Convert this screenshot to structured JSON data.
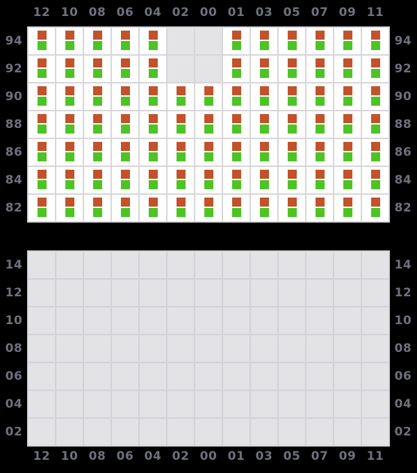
{
  "colors": {
    "background": "#000000",
    "filled_cell": "#ffffff",
    "empty_cell_top": "#e4e4e6",
    "empty_cell_bottom": "#e3e3e5",
    "top_grid_line": "#d6d6da",
    "bottom_grid_line": "#d2d3d7",
    "label_text": "#6f717c",
    "orange_marker": "#c2522c",
    "green_marker": "#4cc424"
  },
  "top_panel": {
    "column_labels": [
      "12",
      "10",
      "08",
      "06",
      "04",
      "02",
      "00",
      "01",
      "03",
      "05",
      "07",
      "09",
      "11"
    ],
    "row_labels_left": [
      "94",
      "92",
      "90",
      "88",
      "86",
      "84",
      "82"
    ],
    "row_labels_right": [
      "94",
      "92",
      "90",
      "88",
      "86",
      "84",
      "82"
    ],
    "empty_cells": [
      [
        "94",
        "02"
      ],
      [
        "94",
        "00"
      ],
      [
        "92",
        "02"
      ],
      [
        "92",
        "00"
      ]
    ],
    "cell_markers": [
      "orange-marker",
      "green-marker"
    ]
  },
  "bottom_panel": {
    "column_labels": [
      "12",
      "10",
      "08",
      "06",
      "04",
      "02",
      "00",
      "01",
      "03",
      "05",
      "07",
      "09",
      "11"
    ],
    "row_labels_left": [
      "14",
      "12",
      "10",
      "08",
      "06",
      "04",
      "02"
    ],
    "row_labels_right": [
      "14",
      "12",
      "10",
      "08",
      "06",
      "04",
      "02"
    ],
    "empty_cells": "all"
  }
}
